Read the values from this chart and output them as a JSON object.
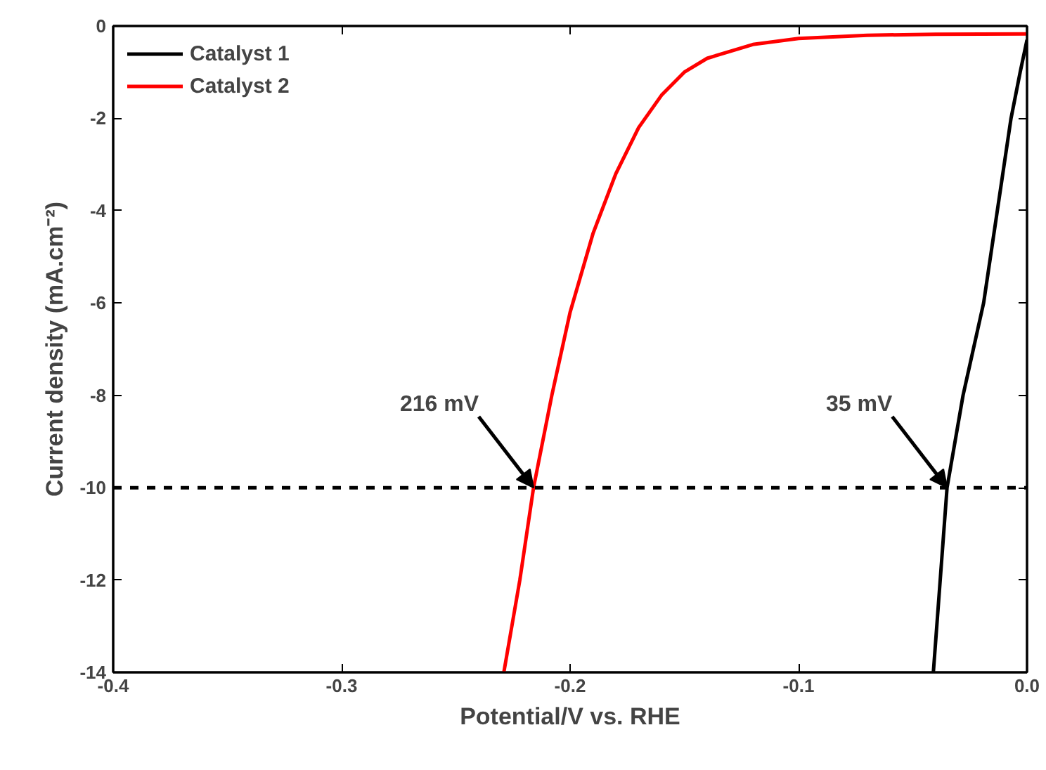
{
  "chart_data": {
    "type": "line",
    "xlabel": "Potential/V vs. RHE",
    "ylabel": "Current density (mA.cm⁻²)",
    "xlim": [
      -0.4,
      0.0
    ],
    "ylim": [
      -14,
      0
    ],
    "xticks": [
      -0.4,
      -0.3,
      -0.2,
      -0.1,
      {
        "value": 0.0,
        "label": "0.0"
      }
    ],
    "yticks": [
      -14,
      -12,
      -10,
      -8,
      -6,
      -4,
      -2,
      0
    ],
    "grid": false,
    "legend": "top left",
    "line_style": "solid",
    "marker": "none",
    "series": [
      {
        "name": "Catalyst 1",
        "color": "#000000",
        "x": [
          -0.041,
          -0.038,
          -0.035,
          -0.028,
          -0.019,
          -0.013,
          -0.007,
          -0.003,
          0.0
        ],
        "values": [
          -14,
          -12,
          -10,
          -8,
          -6,
          -4,
          -2,
          -1,
          -0.3
        ]
      },
      {
        "name": "Catalyst 2",
        "color": "#ff0000",
        "x": [
          -0.229,
          -0.222,
          -0.216,
          -0.208,
          -0.2,
          -0.19,
          -0.18,
          -0.17,
          -0.16,
          -0.15,
          -0.14,
          -0.12,
          -0.1,
          -0.07,
          -0.04,
          0.0
        ],
        "values": [
          -14,
          -12,
          -10,
          -8,
          -6.2,
          -4.5,
          -3.2,
          -2.2,
          -1.5,
          -1.0,
          -0.7,
          -0.4,
          -0.27,
          -0.2,
          -0.18,
          -0.17
        ]
      }
    ],
    "ref_lines": [
      {
        "axis": "y",
        "value": -10,
        "color": "#000000",
        "line_style": "dashed"
      }
    ],
    "annotations": [
      {
        "text": "216 mV",
        "x": -0.216,
        "y": -10
      },
      {
        "text": "35 mV",
        "x": -0.035,
        "y": -10
      }
    ]
  }
}
